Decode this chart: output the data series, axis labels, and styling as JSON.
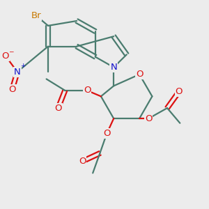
{
  "bg_color": "#ececec",
  "bond_color": "#4a7c6f",
  "lw": 1.6,
  "sep": 0.1,
  "atom_colors": {
    "Br": "#c87800",
    "N_indole": "#1111cc",
    "N_nitro": "#1111cc",
    "O": "#dd1111"
  },
  "fs": 9.0
}
